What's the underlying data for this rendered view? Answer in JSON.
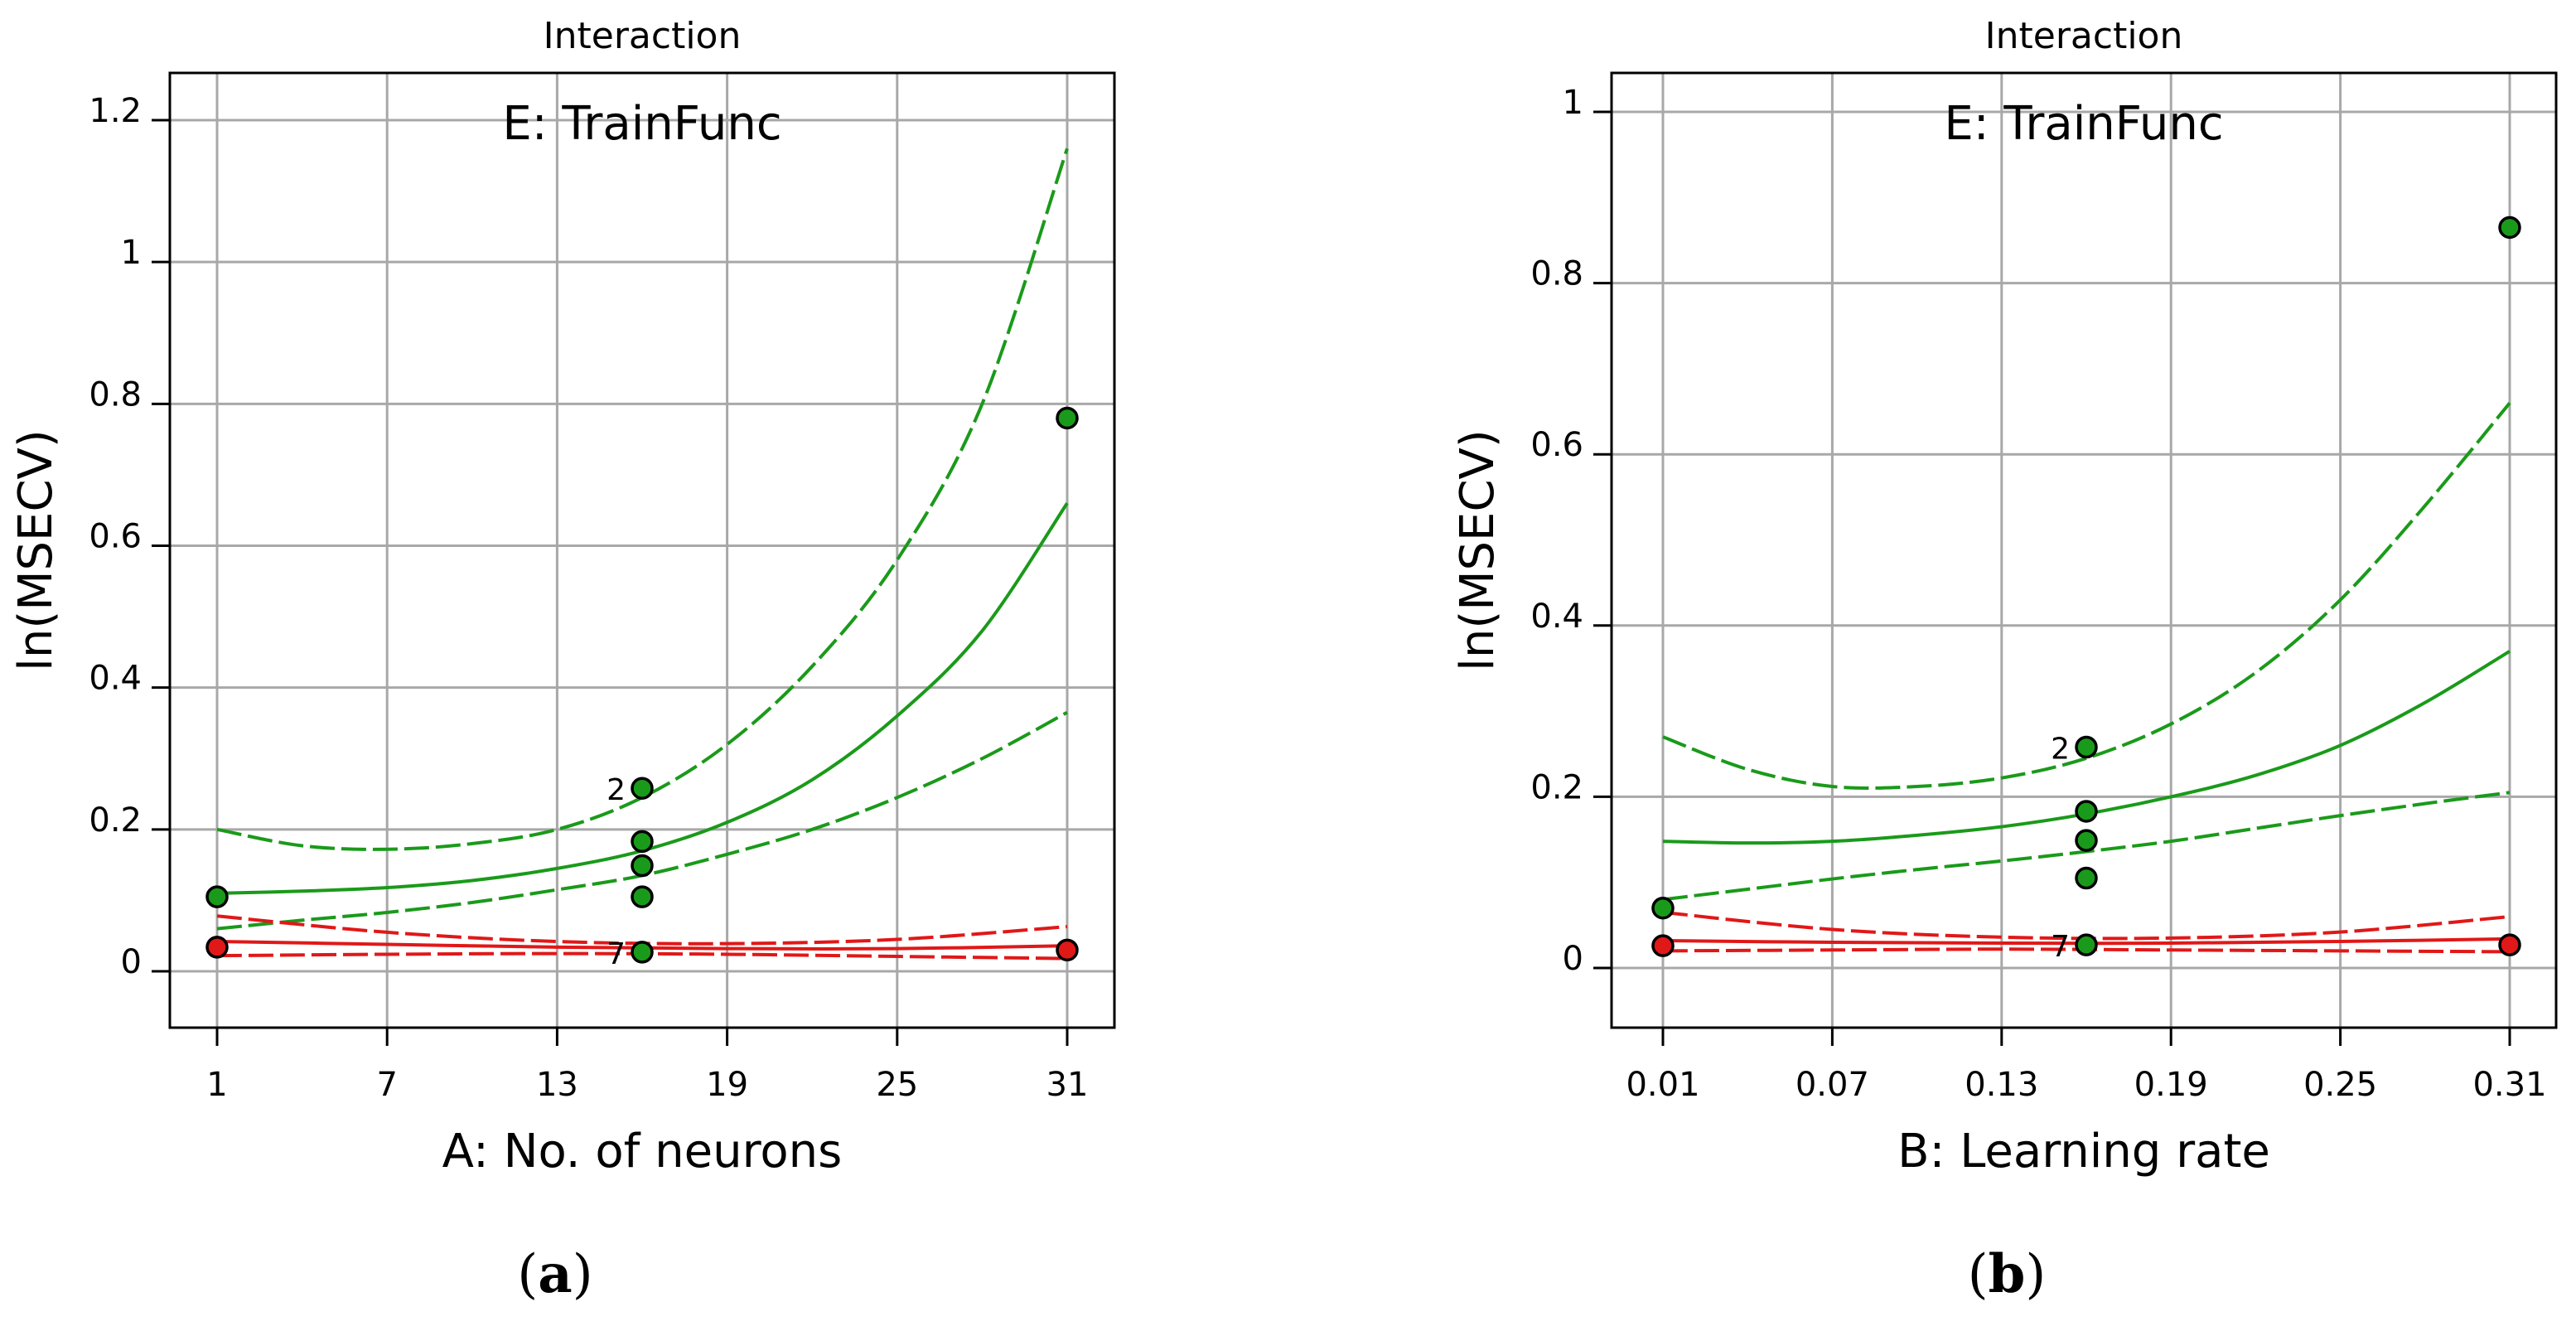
{
  "colors": {
    "green": "#1a9a1a",
    "red": "#e01818",
    "grid": "#a8a8a8",
    "axis": "#000000",
    "point_green": "#1a9a1a",
    "point_red": "#e01818"
  },
  "chart_data": [
    {
      "type": "line",
      "panel_label": "a",
      "title": "Interaction",
      "legend_text": "E: TrainFunc",
      "xlabel": "A: No. of neurons",
      "ylabel": "ln(MSECV)",
      "xlim": [
        1,
        31
      ],
      "ylim": [
        0,
        1.2
      ],
      "xticks": [
        1,
        7,
        13,
        19,
        25,
        31
      ],
      "xtick_labels": [
        "1",
        "7",
        "13",
        "19",
        "25",
        "31"
      ],
      "yticks": [
        0,
        0.2,
        0.4,
        0.6,
        0.8,
        1.0,
        1.2
      ],
      "ytick_labels": [
        "0",
        "0.2",
        "0.4",
        "0.6",
        "0.8",
        "1",
        "1.2"
      ],
      "series": [
        {
          "color": "green",
          "style": "solid",
          "x": [
            1,
            4,
            7,
            10,
            13,
            16,
            19,
            22,
            25,
            28,
            31
          ],
          "y": [
            0.11,
            0.113,
            0.118,
            0.128,
            0.145,
            0.17,
            0.21,
            0.27,
            0.36,
            0.48,
            0.66
          ]
        },
        {
          "color": "green",
          "style": "dashed",
          "x": [
            1,
            4,
            7,
            10,
            13,
            16,
            19,
            22,
            25,
            28,
            31
          ],
          "y": [
            0.2,
            0.177,
            0.172,
            0.18,
            0.2,
            0.245,
            0.32,
            0.43,
            0.58,
            0.8,
            1.16
          ]
        },
        {
          "color": "green",
          "style": "dashed",
          "x": [
            1,
            4,
            7,
            10,
            13,
            16,
            19,
            22,
            25,
            28,
            31
          ],
          "y": [
            0.06,
            0.072,
            0.083,
            0.097,
            0.115,
            0.135,
            0.165,
            0.2,
            0.245,
            0.3,
            0.365
          ]
        },
        {
          "color": "red",
          "style": "solid",
          "x": [
            1,
            7,
            13,
            19,
            25,
            31
          ],
          "y": [
            0.042,
            0.038,
            0.034,
            0.032,
            0.032,
            0.036
          ]
        },
        {
          "color": "red",
          "style": "dashed",
          "x": [
            1,
            7,
            13,
            19,
            25,
            31
          ],
          "y": [
            0.078,
            0.055,
            0.042,
            0.039,
            0.045,
            0.063
          ]
        },
        {
          "color": "red",
          "style": "dashed",
          "x": [
            1,
            7,
            13,
            19,
            25,
            31
          ],
          "y": [
            0.022,
            0.024,
            0.025,
            0.024,
            0.021,
            0.018
          ]
        }
      ],
      "points": [
        {
          "x": 1,
          "y": 0.105,
          "color": "green"
        },
        {
          "x": 16,
          "y": 0.258,
          "color": "green"
        },
        {
          "x": 16,
          "y": 0.183,
          "color": "green"
        },
        {
          "x": 16,
          "y": 0.149,
          "color": "green"
        },
        {
          "x": 16,
          "y": 0.105,
          "color": "green"
        },
        {
          "x": 16,
          "y": 0.027,
          "color": "green"
        },
        {
          "x": 31,
          "y": 0.78,
          "color": "green"
        },
        {
          "x": 1,
          "y": 0.034,
          "color": "red"
        },
        {
          "x": 31,
          "y": 0.03,
          "color": "red"
        }
      ],
      "point_labels": [
        {
          "x": 16,
          "y": 0.258,
          "text": "2"
        },
        {
          "x": 16,
          "y": 0.027,
          "text": "7"
        }
      ]
    },
    {
      "type": "line",
      "panel_label": "b",
      "title": "Interaction",
      "legend_text": "E: TrainFunc",
      "xlabel": "B: Learning rate",
      "ylabel": "ln(MSECV)",
      "xlim": [
        0.01,
        0.31
      ],
      "ylim": [
        0,
        1.0
      ],
      "xticks": [
        0.01,
        0.07,
        0.13,
        0.19,
        0.25,
        0.31
      ],
      "xtick_labels": [
        "0.01",
        "0.07",
        "0.13",
        "0.19",
        "0.25",
        "0.31"
      ],
      "yticks": [
        0,
        0.2,
        0.4,
        0.6,
        0.8,
        1.0
      ],
      "ytick_labels": [
        "0",
        "0.2",
        "0.4",
        "0.6",
        "0.8",
        "1"
      ],
      "series": [
        {
          "color": "green",
          "style": "solid",
          "x": [
            0.01,
            0.04,
            0.07,
            0.1,
            0.13,
            0.16,
            0.19,
            0.22,
            0.25,
            0.28,
            0.31
          ],
          "y": [
            0.148,
            0.146,
            0.148,
            0.155,
            0.165,
            0.18,
            0.2,
            0.225,
            0.26,
            0.31,
            0.37
          ]
        },
        {
          "color": "green",
          "style": "dashed",
          "x": [
            0.01,
            0.04,
            0.07,
            0.1,
            0.13,
            0.16,
            0.19,
            0.22,
            0.25,
            0.28,
            0.31
          ],
          "y": [
            0.27,
            0.232,
            0.212,
            0.212,
            0.222,
            0.245,
            0.285,
            0.345,
            0.43,
            0.54,
            0.66
          ]
        },
        {
          "color": "green",
          "style": "dashed",
          "x": [
            0.01,
            0.04,
            0.07,
            0.1,
            0.13,
            0.16,
            0.19,
            0.22,
            0.25,
            0.28,
            0.31
          ],
          "y": [
            0.08,
            0.092,
            0.104,
            0.115,
            0.125,
            0.136,
            0.148,
            0.163,
            0.178,
            0.192,
            0.205
          ]
        },
        {
          "color": "red",
          "style": "solid",
          "x": [
            0.01,
            0.07,
            0.13,
            0.19,
            0.25,
            0.31
          ],
          "y": [
            0.032,
            0.03,
            0.029,
            0.029,
            0.031,
            0.034
          ]
        },
        {
          "color": "red",
          "style": "dashed",
          "x": [
            0.01,
            0.07,
            0.13,
            0.19,
            0.25,
            0.31
          ],
          "y": [
            0.065,
            0.045,
            0.036,
            0.035,
            0.042,
            0.06
          ]
        },
        {
          "color": "red",
          "style": "dashed",
          "x": [
            0.01,
            0.07,
            0.13,
            0.19,
            0.25,
            0.31
          ],
          "y": [
            0.02,
            0.021,
            0.022,
            0.021,
            0.02,
            0.019
          ]
        }
      ],
      "points": [
        {
          "x": 0.01,
          "y": 0.07,
          "color": "green"
        },
        {
          "x": 0.16,
          "y": 0.258,
          "color": "green"
        },
        {
          "x": 0.16,
          "y": 0.183,
          "color": "green"
        },
        {
          "x": 0.16,
          "y": 0.149,
          "color": "green"
        },
        {
          "x": 0.16,
          "y": 0.105,
          "color": "green"
        },
        {
          "x": 0.16,
          "y": 0.027,
          "color": "green"
        },
        {
          "x": 0.31,
          "y": 0.865,
          "color": "green"
        },
        {
          "x": 0.01,
          "y": 0.026,
          "color": "red"
        },
        {
          "x": 0.31,
          "y": 0.027,
          "color": "red"
        }
      ],
      "point_labels": [
        {
          "x": 0.16,
          "y": 0.258,
          "text": "2"
        },
        {
          "x": 0.16,
          "y": 0.027,
          "text": "7"
        }
      ]
    }
  ]
}
